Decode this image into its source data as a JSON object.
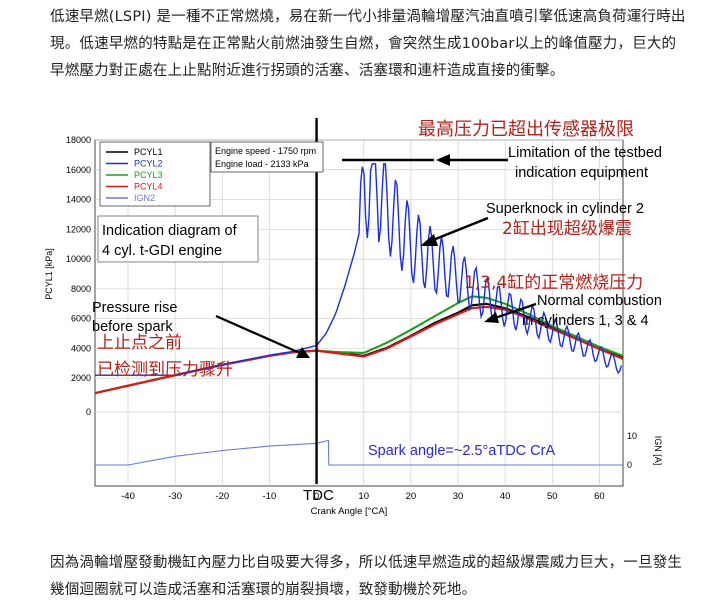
{
  "paragraphs": {
    "intro": "低速早燃(LSPI) 是一種不正常燃燒，易在新一代小排量渦輪增壓汽油直噴引擎低速高負荷運行時出現。低速早燃的特點是在正常點火前燃油發生自燃，會突然生成100bar以上的峰值壓力，巨大的早燃壓力對正處在上止點附近進行拐頭的活塞、活塞環和連杆造成直接的衝擊。",
    "conclusion": "因為渦輪增壓發動機缸內壓力比自吸要大得多，所以低速早燃造成的超級爆震威力巨大，一旦發生幾個迴圈就可以造成活塞和活塞環的崩裂損壞，致發動機於死地。"
  },
  "figure": {
    "legend": [
      {
        "name": "PCYL1",
        "color": "#000000"
      },
      {
        "name": "PCYL2",
        "color": "#1a2ee0"
      },
      {
        "name": "PCYL3",
        "color": "#1e9e1e"
      },
      {
        "name": "PCYL4",
        "color": "#e01818"
      },
      {
        "name": "IGN2",
        "color": "#6a7ad8"
      }
    ],
    "info_box": [
      "Engine speed - 1750 rpm",
      "Engine load - 2133 kPa"
    ],
    "labels": {
      "title_box": [
        "Indication diagram of",
        "4 cyl. t-GDI engine"
      ],
      "limit_cn": "最高压力已超出传感器极限",
      "limit_en": [
        "Limitation of the testbed",
        "indication equipment"
      ],
      "superknock_en": "Superknock in cylinder 2",
      "superknock_cn": "2缸出现超级爆震",
      "normal_cn": "1,3,4缸的正常燃烧压力",
      "normal_en": [
        "Normal combustion",
        "in cylinders 1, 3 & 4"
      ],
      "pressure_en": [
        "Pressure rise",
        "before spark"
      ],
      "pressure_cn": [
        "上止点之前",
        "已检测到压力骤升"
      ],
      "spark": "Spark angle=~2.5°aTDC CrA",
      "tdc": "TDC"
    },
    "colors": {
      "annotation_red": "#b52018",
      "spark_blue": "#2828d8"
    }
  },
  "chart_data": {
    "type": "line",
    "xlabel": "Crank Angle [°CA]",
    "ylabel": "PCYL1 [kPa]",
    "y2label": "IGN [A]",
    "xlim": [
      -47,
      65
    ],
    "ylim": [
      0,
      18000
    ],
    "x_ticks": [
      -40,
      -30,
      -20,
      -10,
      0,
      10,
      20,
      30,
      40,
      50,
      60
    ],
    "y_ticks": [
      2000,
      4000,
      6000,
      8000,
      10000,
      12000,
      14000,
      16000,
      18000
    ],
    "y2_ticks": [
      0,
      10
    ],
    "grid": true,
    "series": [
      {
        "name": "PCYL1",
        "x": [
          -47,
          -40,
          -30,
          -20,
          -10,
          -5,
          0,
          5,
          10,
          15,
          20,
          25,
          30,
          33,
          36,
          40,
          45,
          50,
          55,
          60,
          65
        ],
        "values": [
          1000,
          1500,
          2200,
          2900,
          3500,
          3750,
          3850,
          3700,
          3500,
          4050,
          4850,
          5700,
          6400,
          6900,
          7000,
          6700,
          6100,
          5400,
          4700,
          4000,
          3400
        ]
      },
      {
        "name": "PCYL2",
        "x": [
          -47,
          -40,
          -30,
          -20,
          -10,
          -5,
          0,
          2,
          4,
          6,
          8,
          10,
          12,
          15,
          20,
          25,
          30,
          35,
          40,
          45,
          50,
          55,
          60,
          65
        ],
        "values": [
          1000,
          1500,
          2200,
          2900,
          3550,
          3800,
          4200,
          5000,
          6300,
          8200,
          10400,
          13000,
          15000,
          13500,
          11000,
          9800,
          8800,
          7600,
          6700,
          6000,
          5200,
          4400,
          3600,
          2700
        ]
      },
      {
        "name": "PCYL3",
        "x": [
          -47,
          -40,
          -30,
          -20,
          -10,
          -5,
          0,
          5,
          10,
          15,
          20,
          25,
          30,
          33,
          36,
          40,
          45,
          50,
          55,
          60,
          65
        ],
        "values": [
          1000,
          1500,
          2200,
          2900,
          3500,
          3750,
          3850,
          3750,
          3700,
          4400,
          5250,
          6150,
          7050,
          7500,
          7400,
          7000,
          6300,
          5500,
          4800,
          4100,
          3500
        ]
      },
      {
        "name": "PCYL4",
        "x": [
          -47,
          -40,
          -30,
          -20,
          -10,
          -5,
          0,
          5,
          10,
          15,
          20,
          25,
          30,
          33,
          36,
          40,
          45,
          50,
          55,
          60,
          65
        ],
        "values": [
          1000,
          1500,
          2200,
          2900,
          3500,
          3750,
          3850,
          3650,
          3450,
          4000,
          4800,
          5600,
          6300,
          6700,
          6800,
          6600,
          6000,
          5300,
          4650,
          3950,
          3300
        ]
      },
      {
        "name": "IGN2",
        "x": [
          -47,
          -40,
          -30,
          -20,
          -10,
          0,
          2.5,
          2.6,
          65
        ],
        "values": [
          0,
          0,
          3,
          5,
          6.5,
          7.5,
          8.5,
          0,
          0
        ]
      }
    ]
  }
}
